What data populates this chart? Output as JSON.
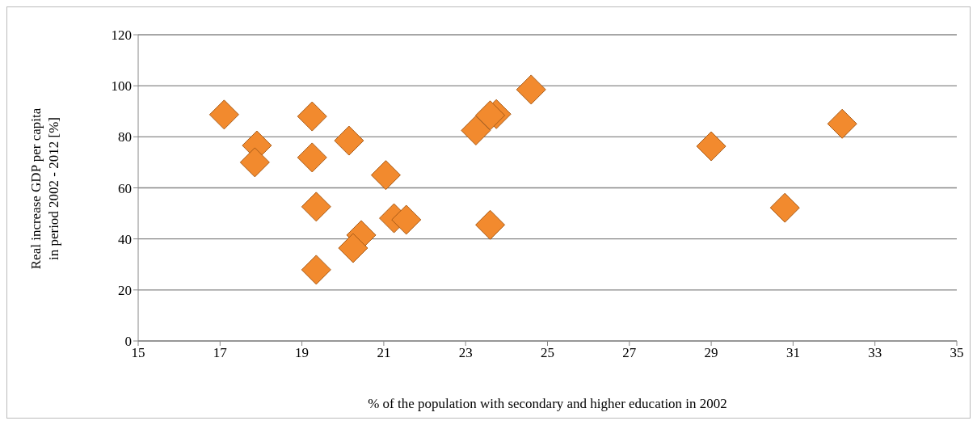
{
  "chart_data": {
    "type": "scatter",
    "xlabel": "% of the population with secondary and higher education in 2002",
    "ylabel": "Real increase GDP per capita in period 2002 - 2012 [%]",
    "xlim": [
      15,
      35
    ],
    "xticks": [
      15,
      17,
      19,
      21,
      23,
      25,
      27,
      29,
      31,
      33,
      35
    ],
    "ylim": [
      0,
      120
    ],
    "yticks": [
      0,
      20,
      40,
      60,
      80,
      100,
      120
    ],
    "grid": "y",
    "marker": "diamond",
    "series": [
      {
        "color": "#f28a2e",
        "x": [
          17.1,
          17.9,
          17.85,
          19.25,
          19.25,
          19.35,
          19.35,
          20.15,
          21.05,
          21.25,
          21.55,
          20.45,
          20.25,
          23.25,
          23.75,
          23.6,
          24.6,
          23.6,
          29.0,
          30.8,
          32.2
        ],
        "values": [
          88.7,
          76.6,
          70.0,
          88.0,
          71.9,
          52.6,
          27.9,
          78.5,
          65.0,
          48.1,
          47.5,
          41.5,
          36.4,
          82.5,
          88.9,
          88.4,
          98.5,
          45.5,
          76.3,
          52.2,
          85.1
        ]
      }
    ]
  }
}
